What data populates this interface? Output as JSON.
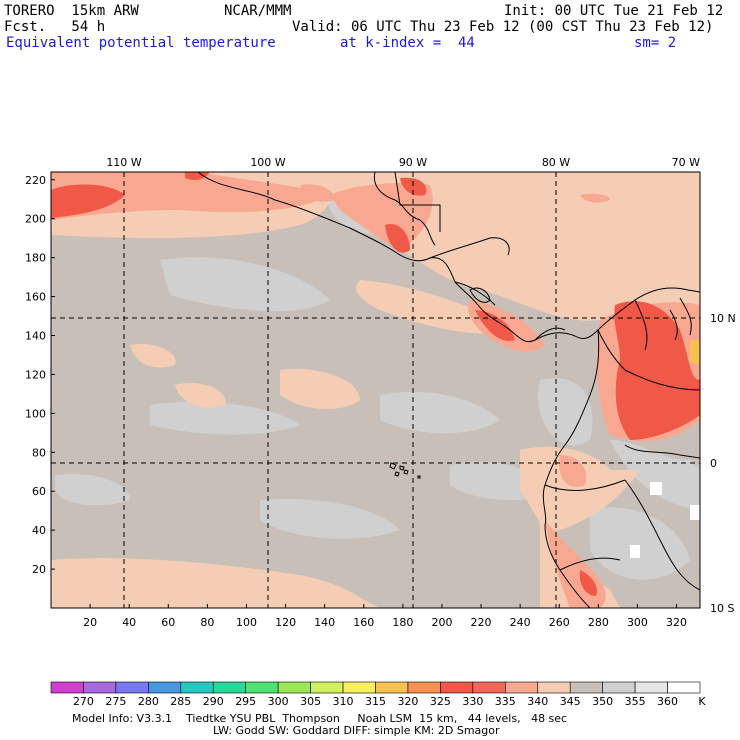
{
  "header": {
    "model": "TORERO  15km ARW",
    "org": "NCAR/MMM",
    "init": "Init: 00 UTC Tue 21 Feb 12",
    "fcst": "Fcst.   54 h",
    "valid": "Valid: 06 UTC Thu 23 Feb 12 (00 CST Thu 23 Feb 12)",
    "field": "Equivalent potential temperature",
    "kindex": "at k-index =  44",
    "sm": "sm= 2"
  },
  "map": {
    "lon_labels": [
      "110 W",
      "100 W",
      "90 W",
      "80 W",
      "70 W"
    ],
    "lat_labels": [
      "10 N",
      "0",
      "10 S"
    ],
    "y_ticks": [
      "20",
      "40",
      "60",
      "80",
      "100",
      "120",
      "140",
      "160",
      "180",
      "200",
      "220"
    ],
    "x_ticks": [
      "20",
      "40",
      "60",
      "80",
      "100",
      "120",
      "140",
      "160",
      "180",
      "200",
      "220",
      "240",
      "260",
      "280",
      "300",
      "320"
    ]
  },
  "colorbar": {
    "labels": [
      "270",
      "275",
      "280",
      "285",
      "290",
      "295",
      "300",
      "305",
      "310",
      "315",
      "320",
      "325",
      "330",
      "335",
      "340",
      "345",
      "350",
      "355",
      "360"
    ],
    "unit": "K",
    "colors": [
      "#d040d0",
      "#a868e0",
      "#7878f0",
      "#4898e0",
      "#28c8c0",
      "#28d898",
      "#50e070",
      "#98e858",
      "#d0f060",
      "#f8f060",
      "#f8c050",
      "#f89050",
      "#f05848",
      "#f06858",
      "#f8a890",
      "#f4cdb4",
      "#c8c0b8",
      "#d0d0d0",
      "#e6e6e6",
      "#ffffff"
    ]
  },
  "footer": {
    "line1": "Model Info: V3.3.1    Tiedtke YSU PBL  Thompson     Noah LSM  15 km,   44 levels,   48 sec",
    "line2": "LW: Godd SW: Goddard DIFF: simple KM: 2D Smagor"
  }
}
